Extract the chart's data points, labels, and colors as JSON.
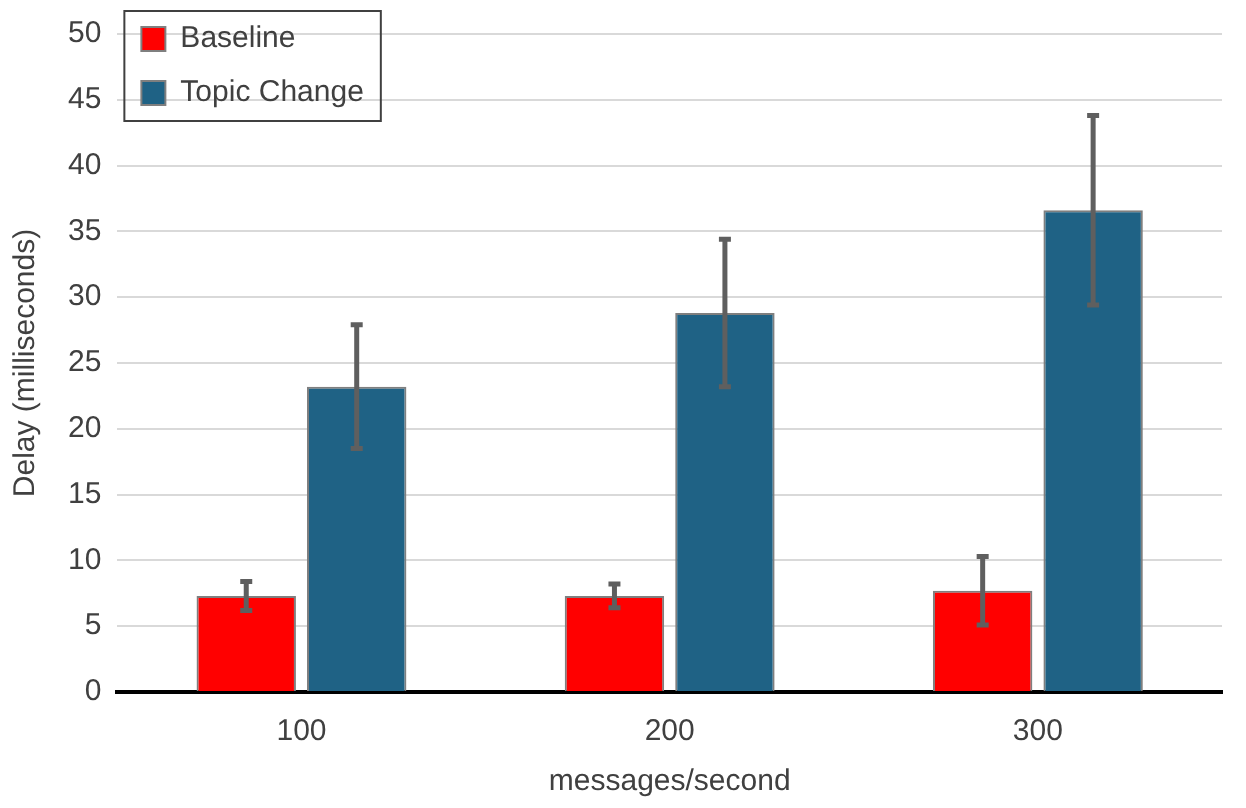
{
  "chart_data": {
    "type": "bar",
    "xlabel": "messages/second",
    "ylabel": "Delay (milliseconds)",
    "categories": [
      "100",
      "200",
      "300"
    ],
    "series": [
      {
        "name": "Baseline",
        "color": "#ff0000",
        "values": [
          7.3,
          7.3,
          7.7
        ],
        "errors": [
          1.1,
          0.9,
          2.6
        ]
      },
      {
        "name": "Topic Change",
        "color": "#1f6285",
        "values": [
          23.2,
          28.8,
          36.6
        ],
        "errors": [
          4.7,
          5.6,
          7.2
        ]
      }
    ],
    "ylim": [
      0,
      50
    ],
    "yticks": [
      0,
      5,
      10,
      15,
      20,
      25,
      30,
      35,
      40,
      45,
      50
    ],
    "grid": "y",
    "legend": "top left"
  }
}
